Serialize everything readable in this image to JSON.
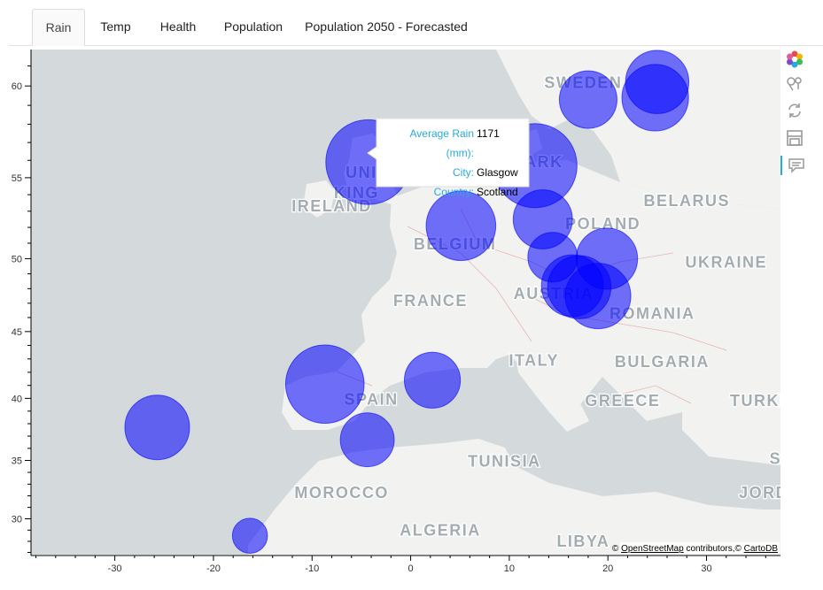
{
  "tabs": [
    {
      "label": "Rain",
      "active": true
    },
    {
      "label": "Temp",
      "active": false
    },
    {
      "label": "Health",
      "active": false
    },
    {
      "label": "Population",
      "active": false
    },
    {
      "label": "Population 2050 - Forecasted",
      "active": false
    }
  ],
  "map": {
    "xlim": [
      -38.5,
      37.5
    ],
    "ylim": [
      26.8,
      61.8
    ],
    "x_ticks": [
      -30,
      -20,
      -10,
      0,
      10,
      20,
      30
    ],
    "y_ticks": [
      30,
      35,
      40,
      45,
      50,
      55,
      60
    ],
    "country_labels": [
      {
        "text": "SWEDEN",
        "lon": 17.5,
        "lat": 59.9
      },
      {
        "text": "UNI",
        "lon": -5.0,
        "lat": 55.0
      },
      {
        "text": "KING",
        "lon": -5.5,
        "lat": 53.8
      },
      {
        "text": "IRELAND",
        "lon": -8.0,
        "lat": 53.0
      },
      {
        "text": "ARK",
        "lon": 13.5,
        "lat": 55.6
      },
      {
        "text": "BELARUS",
        "lon": 28.0,
        "lat": 53.3
      },
      {
        "text": "POLAND",
        "lon": 19.5,
        "lat": 51.9
      },
      {
        "text": "BELGIUM",
        "lon": 4.5,
        "lat": 50.6
      },
      {
        "text": "UKRAINE",
        "lon": 32.0,
        "lat": 49.4
      },
      {
        "text": "FRANCE",
        "lon": 2.0,
        "lat": 46.8
      },
      {
        "text": "AUSTRIA",
        "lon": 14.5,
        "lat": 47.3
      },
      {
        "text": "ROMANIA",
        "lon": 24.5,
        "lat": 45.9
      },
      {
        "text": "ITALY",
        "lon": 12.5,
        "lat": 42.5
      },
      {
        "text": "BULGARIA",
        "lon": 25.5,
        "lat": 42.4
      },
      {
        "text": "SPAIN",
        "lon": -4.0,
        "lat": 39.5
      },
      {
        "text": "GREECE",
        "lon": 21.5,
        "lat": 39.4
      },
      {
        "text": "TURKE",
        "lon": 35.5,
        "lat": 39.4
      },
      {
        "text": "TUNISIA",
        "lon": 9.5,
        "lat": 34.5
      },
      {
        "text": "MOROCCO",
        "lon": -7.0,
        "lat": 31.8
      },
      {
        "text": "S",
        "lon": 37.0,
        "lat": 34.7
      },
      {
        "text": "JORD",
        "lon": 35.8,
        "lat": 31.8
      },
      {
        "text": "ALGERIA",
        "lon": 3.0,
        "lat": 28.5
      },
      {
        "text": "LIBYA",
        "lon": 17.5,
        "lat": 27.5
      }
    ],
    "attribution": {
      "prefix": "© ",
      "osm": "OpenStreetMap",
      "middle": " contributors,© ",
      "carto": "CartoDB"
    }
  },
  "chart_data": {
    "type": "scatter",
    "title": "",
    "xlabel": "",
    "ylabel": "",
    "xlim": [
      -38.5,
      37.5
    ],
    "ylim": [
      26.8,
      61.8
    ],
    "marker": "circle",
    "color": "#0000ff",
    "points": [
      {
        "lon": -4.3,
        "lat": 55.9,
        "size": 1171
      },
      {
        "lon": 12.6,
        "lat": 55.7,
        "size": 1150
      },
      {
        "lon": -8.7,
        "lat": 41.1,
        "size": 1000
      },
      {
        "lon": 5.1,
        "lat": 52.1,
        "size": 790
      },
      {
        "lon": 25.0,
        "lat": 60.2,
        "size": 650
      },
      {
        "lon": 24.8,
        "lat": 59.4,
        "size": 720
      },
      {
        "lon": 18.0,
        "lat": 59.3,
        "size": 540
      },
      {
        "lon": 13.4,
        "lat": 52.5,
        "size": 570
      },
      {
        "lon": 19.9,
        "lat": 50.0,
        "size": 610
      },
      {
        "lon": 14.4,
        "lat": 50.1,
        "size": 400
      },
      {
        "lon": 19.0,
        "lat": 47.5,
        "size": 700
      },
      {
        "lon": 17.1,
        "lat": 48.1,
        "size": 650
      },
      {
        "lon": 16.4,
        "lat": 48.2,
        "size": 620
      },
      {
        "lon": 2.2,
        "lat": 41.4,
        "size": 510
      },
      {
        "lon": -4.4,
        "lat": 36.7,
        "size": 470
      },
      {
        "lon": -25.7,
        "lat": 37.7,
        "size": 680
      },
      {
        "lon": -16.3,
        "lat": 28.5,
        "size": 200
      }
    ]
  },
  "tooltip": {
    "rows": [
      {
        "label": "Average Rain (mm):",
        "value": "1171"
      },
      {
        "label": "City:",
        "value": "Glasgow"
      },
      {
        "label": "Country:",
        "value": "Scotland"
      }
    ]
  },
  "toolbar": {
    "tools": [
      "bokeh-logo-icon",
      "pan-icon",
      "reset-icon",
      "save-icon",
      "hover-icon"
    ],
    "active": "hover-icon"
  }
}
